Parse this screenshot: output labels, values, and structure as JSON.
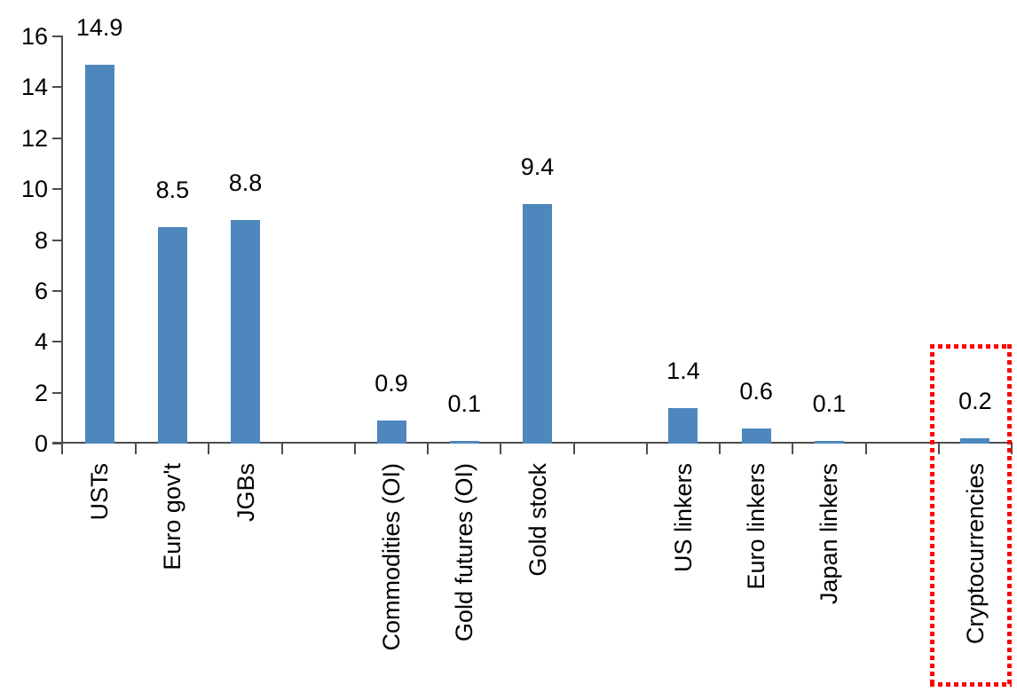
{
  "chart_data": {
    "type": "bar",
    "title": "",
    "categories": [
      "USTs",
      "Euro gov't",
      "JGBs",
      "",
      "Commodities (OI)",
      "Gold futures (OI)",
      "Gold stock",
      "",
      "US linkers",
      "Euro linkers",
      "Japan linkers",
      "",
      "Cryptocurrencies"
    ],
    "values": [
      14.9,
      8.5,
      8.8,
      null,
      0.9,
      0.1,
      9.4,
      null,
      1.4,
      0.6,
      0.1,
      null,
      0.2
    ],
    "data_labels": [
      "14.9",
      "8.5",
      "8.8",
      null,
      "0.9",
      "0.1",
      "9.4",
      null,
      "1.4",
      "0.6",
      "0.1",
      null,
      "0.2"
    ],
    "xlabel": "",
    "ylabel": "",
    "ylim": [
      0,
      16
    ],
    "y_ticks": [
      0,
      2,
      4,
      6,
      8,
      10,
      12,
      14,
      16
    ],
    "grid": false,
    "legend_position": "none",
    "x_label_rotation_degrees": 90,
    "bar_color": "#4E87BD",
    "axis_color": "#4d4d4d",
    "text_color": "#000000",
    "highlight": {
      "category": "Cryptocurrencies",
      "shape": "red-dotted-rectangle",
      "color": "#FF0000"
    }
  }
}
